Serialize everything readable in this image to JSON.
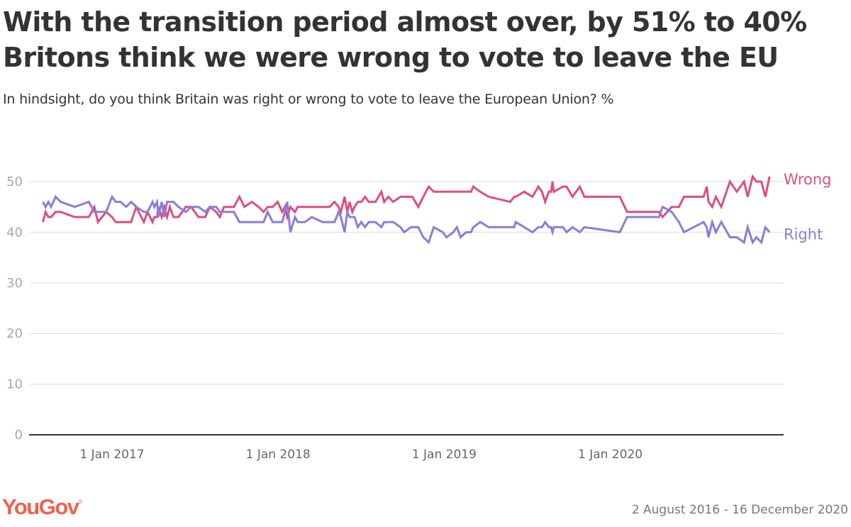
{
  "header": {
    "title": "With the transition period almost over, by 51% to 40% Britons think we were wrong to vote to leave the EU",
    "subtitle": "In hindsight, do you think Britain was right or wrong to vote to leave the European Union? %"
  },
  "footer": {
    "brand": "YouGov",
    "brand_mark": "®",
    "date_range": "2 August 2016 - 16 December 2020"
  },
  "chart_data": {
    "type": "line",
    "title": "With the transition period almost over, by 51% to 40% Britons think we were wrong to vote to leave the EU",
    "subtitle": "In hindsight, do you think Britain was right or wrong to vote to leave the European Union? %",
    "xlabel": "",
    "ylabel": "",
    "ylim": [
      0,
      50
    ],
    "xlim": [
      "2016-08-02",
      "2020-12-16"
    ],
    "yticks": [
      0,
      10,
      20,
      30,
      40,
      50
    ],
    "xticks": [
      {
        "date": "2017-01-01",
        "label": "1 Jan 2017"
      },
      {
        "date": "2018-01-01",
        "label": "1 Jan 2018"
      },
      {
        "date": "2019-01-01",
        "label": "1 Jan 2019"
      },
      {
        "date": "2020-01-01",
        "label": "1 Jan 2020"
      }
    ],
    "grid": true,
    "legend": "inline-right",
    "x": [
      "2016-08-02",
      "2016-08-08",
      "2016-08-14",
      "2016-08-20",
      "2016-08-30",
      "2016-09-10",
      "2016-10-11",
      "2016-11-11",
      "2016-11-23",
      "2016-12-01",
      "2016-12-19",
      "2017-01-01",
      "2017-01-09",
      "2017-01-20",
      "2017-02-01",
      "2017-02-12",
      "2017-02-23",
      "2017-03-12",
      "2017-03-20",
      "2017-03-31",
      "2017-04-04",
      "2017-04-10",
      "2017-04-13",
      "2017-04-20",
      "2017-04-26",
      "2017-05-02",
      "2017-05-08",
      "2017-05-16",
      "2017-05-27",
      "2017-06-12",
      "2017-06-24",
      "2017-07-10",
      "2017-07-25",
      "2017-08-04",
      "2017-08-18",
      "2017-08-26",
      "2017-09-04",
      "2017-09-18",
      "2017-09-26",
      "2017-10-08",
      "2017-10-19",
      "2017-11-04",
      "2017-11-19",
      "2017-11-30",
      "2017-12-09",
      "2017-12-20",
      "2017-12-31",
      "2018-01-10",
      "2018-01-16",
      "2018-01-21",
      "2018-01-28",
      "2018-02-07",
      "2018-02-13",
      "2018-03-01",
      "2018-03-16",
      "2018-04-09",
      "2018-04-24",
      "2018-05-05",
      "2018-05-14",
      "2018-05-19",
      "2018-05-27",
      "2018-06-02",
      "2018-06-07",
      "2018-06-13",
      "2018-06-18",
      "2018-06-25",
      "2018-07-03",
      "2018-07-11",
      "2018-07-19",
      "2018-08-03",
      "2018-08-16",
      "2018-08-22",
      "2018-08-31",
      "2018-09-11",
      "2018-09-27",
      "2018-10-05",
      "2018-10-20",
      "2018-10-23",
      "2018-11-05",
      "2018-11-16",
      "2018-11-28",
      "2018-12-09",
      "2018-12-29",
      "2019-01-06",
      "2019-01-21",
      "2019-01-29",
      "2019-02-06",
      "2019-02-18",
      "2019-03-01",
      "2019-03-06",
      "2019-03-21",
      "2019-04-09",
      "2019-05-26",
      "2019-06-04",
      "2019-06-07",
      "2019-06-26",
      "2019-07-14",
      "2019-07-27",
      "2019-08-04",
      "2019-08-11",
      "2019-08-19",
      "2019-08-24",
      "2019-08-27",
      "2019-08-30",
      "2019-09-19",
      "2019-09-27",
      "2019-10-10",
      "2019-10-26",
      "2019-11-05",
      "2020-01-22",
      "2020-02-07",
      "2020-04-17",
      "2020-04-25",
      "2020-05-15",
      "2020-05-31",
      "2020-06-11",
      "2020-07-24",
      "2020-07-31",
      "2020-08-04",
      "2020-08-12",
      "2020-08-20",
      "2020-09-01",
      "2020-09-20",
      "2020-10-05",
      "2020-10-21",
      "2020-10-29",
      "2020-11-09",
      "2020-11-17",
      "2020-11-28",
      "2020-12-07",
      "2020-12-16"
    ],
    "series": [
      {
        "name": "Wrong",
        "color": "#de4e80",
        "values": [
          42,
          44,
          43,
          43,
          44,
          44,
          43,
          43,
          45,
          42,
          44,
          43,
          42,
          42,
          42,
          42,
          45,
          42,
          44,
          42,
          43,
          43,
          45,
          43,
          45,
          43,
          45,
          43,
          43,
          45,
          45,
          43,
          43,
          45,
          44,
          43,
          45,
          45,
          45,
          47,
          45,
          46,
          45,
          44,
          45,
          45,
          46,
          44,
          45,
          43,
          45,
          44,
          45,
          45,
          45,
          45,
          45,
          46,
          45,
          44,
          47,
          44,
          46,
          44,
          45,
          46,
          46,
          47,
          46,
          46,
          48,
          46,
          47,
          46,
          47,
          47,
          47,
          47,
          45,
          47,
          49,
          48,
          48,
          48,
          48,
          48,
          48,
          48,
          48,
          49,
          48,
          47,
          46,
          47,
          47,
          48,
          47,
          49,
          48,
          46,
          48,
          48,
          50,
          48,
          49,
          49,
          47,
          49,
          47,
          47,
          44,
          44,
          43,
          45,
          45,
          47,
          47,
          49,
          46,
          45,
          47,
          45,
          50,
          48,
          50,
          47,
          51,
          50,
          50,
          47,
          51
        ]
      },
      {
        "name": "Right",
        "color": "#8b7dd6",
        "values": [
          46,
          45,
          46,
          45,
          47,
          46,
          45,
          46,
          44,
          44,
          44,
          47,
          46,
          46,
          45,
          46,
          45,
          44,
          44,
          46,
          45,
          46,
          43,
          46,
          43,
          46,
          46,
          46,
          45,
          44,
          45,
          45,
          44,
          45,
          45,
          44,
          44,
          44,
          44,
          42,
          42,
          42,
          42,
          42,
          44,
          42,
          42,
          42,
          44,
          46,
          40,
          43,
          42,
          42,
          43,
          42,
          42,
          42,
          44,
          43,
          40,
          44,
          43,
          43,
          43,
          41,
          42,
          41,
          42,
          42,
          41,
          42,
          42,
          42,
          41,
          40,
          41,
          41,
          41,
          39,
          38,
          41,
          40,
          39,
          40,
          41,
          39,
          40,
          40,
          41,
          42,
          41,
          41,
          41,
          42,
          41,
          40,
          41,
          41,
          42,
          41,
          41,
          40,
          41,
          41,
          40,
          41,
          40,
          41,
          40,
          43,
          43,
          45,
          44,
          42,
          40,
          42,
          41,
          39,
          42,
          40,
          42,
          39,
          39,
          38,
          41,
          38,
          39,
          38,
          41,
          40
        ]
      }
    ]
  }
}
